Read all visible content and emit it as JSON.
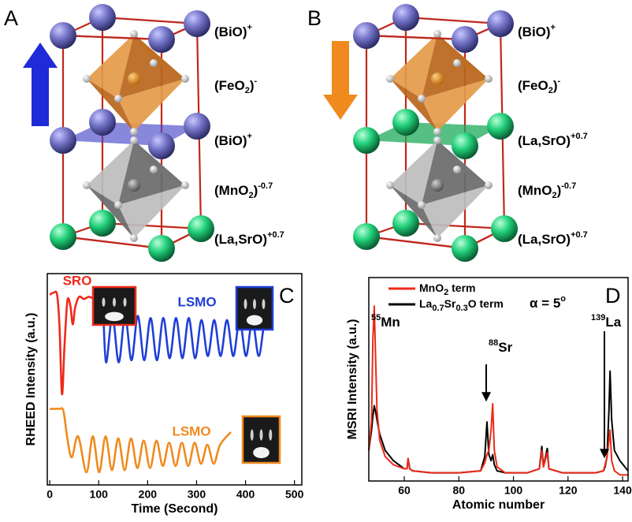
{
  "panels": {
    "A": {
      "letter": "A",
      "labels": [
        [
          {
            "t": "(BiO)"
          },
          {
            "sup": "+"
          }
        ],
        [
          {
            "t": "(FeO"
          },
          {
            "sub": "2"
          },
          {
            "t": ")"
          },
          {
            "sup": "-"
          }
        ],
        [
          {
            "t": "(BiO)"
          },
          {
            "sup": "+"
          }
        ],
        [
          {
            "t": "(MnO"
          },
          {
            "sub": "2"
          },
          {
            "t": ")"
          },
          {
            "sup": "-0.7"
          }
        ],
        [
          {
            "t": "(La,SrO)"
          },
          {
            "sup": "+0.7"
          }
        ]
      ]
    },
    "B": {
      "letter": "B",
      "labels": [
        [
          {
            "t": "(BiO)"
          },
          {
            "sup": "+"
          }
        ],
        [
          {
            "t": "(FeO"
          },
          {
            "sub": "2"
          },
          {
            "t": ")"
          },
          {
            "sup": "-"
          }
        ],
        [
          {
            "t": "(La,SrO)"
          },
          {
            "sup": "+0.7"
          }
        ],
        [
          {
            "t": "(MnO"
          },
          {
            "sub": "2"
          },
          {
            "t": ")"
          },
          {
            "sup": "-0.7"
          }
        ],
        [
          {
            "t": "(La,SrO)"
          },
          {
            "sup": "+0.7"
          }
        ]
      ]
    }
  },
  "chart_data": [
    {
      "type": "line",
      "panel_label": "C",
      "xlabel": "Time (Second)",
      "ylabel": "RHEED Intensity (a.u.)",
      "xlim": [
        -5,
        515
      ],
      "xticks": [
        0,
        100,
        200,
        300,
        400,
        500
      ],
      "ylim": [
        0,
        10
      ],
      "series": [
        {
          "color": "#ee2a1a",
          "x": [
            0,
            8,
            15,
            20,
            25,
            30,
            36,
            42,
            47,
            52,
            60,
            70,
            80,
            90
          ],
          "values": [
            9.0,
            9.1,
            9.0,
            7.5,
            4.3,
            6.5,
            8.7,
            8.5,
            7.6,
            8.4,
            8.9,
            8.8,
            8.9,
            8.8
          ]
        },
        {
          "color": "#1f3fd6",
          "x": [
            90,
            100,
            108,
            115,
            128,
            141,
            154,
            167,
            180,
            193,
            206,
            219,
            232,
            245,
            258,
            271,
            284,
            297,
            310,
            323,
            336,
            349,
            362,
            375,
            388,
            401,
            414,
            427,
            440,
            455
          ],
          "values": [
            8.8,
            8.9,
            8.7,
            5.8,
            8.0,
            5.8,
            8.0,
            5.9,
            8.0,
            5.9,
            7.9,
            5.9,
            7.9,
            6.0,
            7.9,
            6.0,
            7.9,
            6.0,
            7.8,
            6.1,
            7.8,
            6.1,
            7.8,
            6.1,
            7.8,
            6.1,
            7.8,
            6.1,
            7.8,
            7.7
          ]
        },
        {
          "color": "#f08a1e",
          "x": [
            0,
            10,
            20,
            28,
            36,
            45,
            58,
            75,
            88,
            101,
            114,
            127,
            140,
            153,
            166,
            179,
            192,
            205,
            218,
            231,
            244,
            257,
            270,
            283,
            296,
            309,
            322,
            335,
            348,
            370
          ],
          "values": [
            3.6,
            3.6,
            3.6,
            3.5,
            2.2,
            1.3,
            2.3,
            0.6,
            2.3,
            0.6,
            2.3,
            0.7,
            2.2,
            0.7,
            2.2,
            0.8,
            2.1,
            0.8,
            2.1,
            0.9,
            2.0,
            0.9,
            2.0,
            0.9,
            2.0,
            1.0,
            1.9,
            1.0,
            1.9,
            2.5
          ]
        }
      ],
      "annotations": [
        {
          "text": "SRO",
          "color": "#ee2a1a"
        },
        {
          "text": "LSMO",
          "color": "#1f3fd6"
        },
        {
          "text": "LSMO",
          "color": "#f08a1e"
        }
      ]
    },
    {
      "type": "line",
      "panel_label": "D",
      "xlabel": "Atomic number",
      "ylabel": "MSRI Intensity (a.u.)",
      "xlim": [
        47,
        142
      ],
      "xticks": [
        60,
        80,
        100,
        120,
        140
      ],
      "ylim": [
        0,
        10
      ],
      "x": [
        47,
        48,
        48.5,
        49,
        49.5,
        50,
        51,
        53,
        56,
        60,
        61,
        61.4,
        62,
        63,
        70,
        80,
        88,
        89.5,
        90.3,
        91,
        91.8,
        92.4,
        93,
        94,
        97,
        105,
        109.5,
        110.4,
        111,
        112.4,
        113,
        118,
        125,
        130,
        133,
        133.6,
        134.3,
        135,
        135.4,
        136,
        137,
        139,
        142
      ],
      "series": [
        {
          "name": [
            {
              "t": "La"
            },
            {
              "sub": "0.7"
            },
            {
              "t": "Sr"
            },
            {
              "sub": "0.3"
            },
            {
              "t": "O term"
            }
          ],
          "color": "#000000",
          "values": [
            1.5,
            2.5,
            3.2,
            3.7,
            3.4,
            3.0,
            2.3,
            1.5,
            1.0,
            0.6,
            0.6,
            1.1,
            0.6,
            0.5,
            0.4,
            0.4,
            0.5,
            1.2,
            2.9,
            1.3,
            1.0,
            1.3,
            0.8,
            0.5,
            0.4,
            0.4,
            0.6,
            1.7,
            0.7,
            1.6,
            0.6,
            0.4,
            0.4,
            0.4,
            0.5,
            0.7,
            1.2,
            3.5,
            5.4,
            3.0,
            1.5,
            1.0,
            0.5
          ]
        },
        {
          "name": [
            {
              "t": "MnO"
            },
            {
              "sub": "2"
            },
            {
              "t": " term"
            }
          ],
          "color": "#ee2a1a",
          "values": [
            1.5,
            3.0,
            7.0,
            8.6,
            6.0,
            3.5,
            2.0,
            1.2,
            0.8,
            0.6,
            0.6,
            1.1,
            0.6,
            0.5,
            0.4,
            0.4,
            0.5,
            0.9,
            1.3,
            1.5,
            2.5,
            3.8,
            1.5,
            0.7,
            0.4,
            0.4,
            0.6,
            1.5,
            0.7,
            1.4,
            0.6,
            0.4,
            0.4,
            0.4,
            0.5,
            0.8,
            1.2,
            2.0,
            2.5,
            1.0,
            0.5,
            0.3,
            0.3
          ]
        }
      ],
      "annotations": [
        [
          {
            "sup": "55"
          },
          {
            "t": "Mn"
          }
        ],
        [
          {
            "sup": "88"
          },
          {
            "t": "Sr"
          }
        ],
        [
          {
            "sup": "139"
          },
          {
            "t": "La"
          }
        ],
        [
          {
            "t": "α = 5"
          },
          {
            "sup": "o"
          }
        ]
      ]
    }
  ]
}
